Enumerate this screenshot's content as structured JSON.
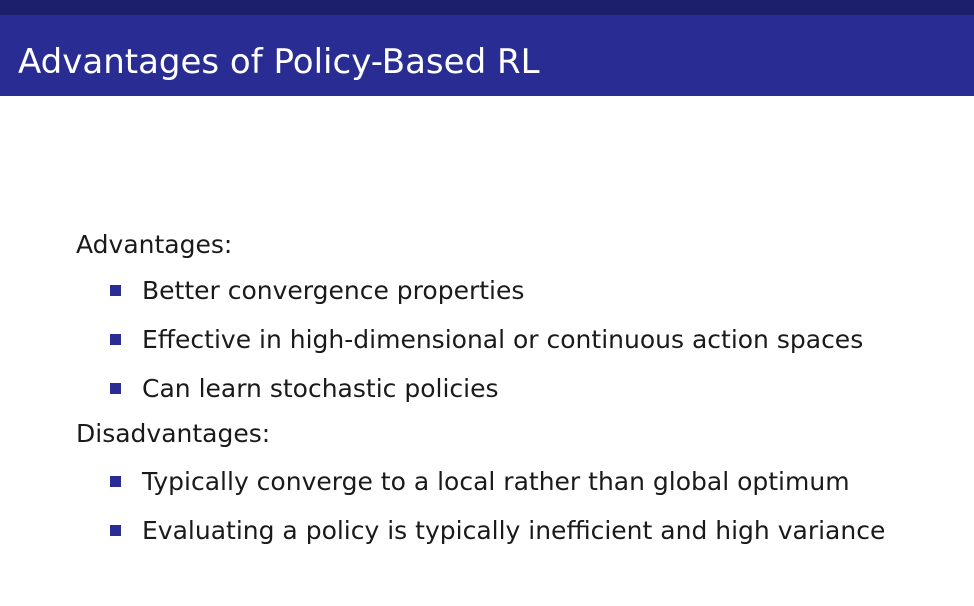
{
  "slide": {
    "title": "Advantages of Policy-Based RL",
    "accent_color": "#292d93",
    "sections": [
      {
        "heading": "Advantages:",
        "items": [
          "Better convergence properties",
          "Effective in high-dimensional or continuous action spaces",
          "Can learn stochastic policies"
        ]
      },
      {
        "heading": "Disadvantages:",
        "items": [
          "Typically converge to a local rather than global optimum",
          "Evaluating a policy is typically inefficient and high variance"
        ]
      }
    ]
  }
}
